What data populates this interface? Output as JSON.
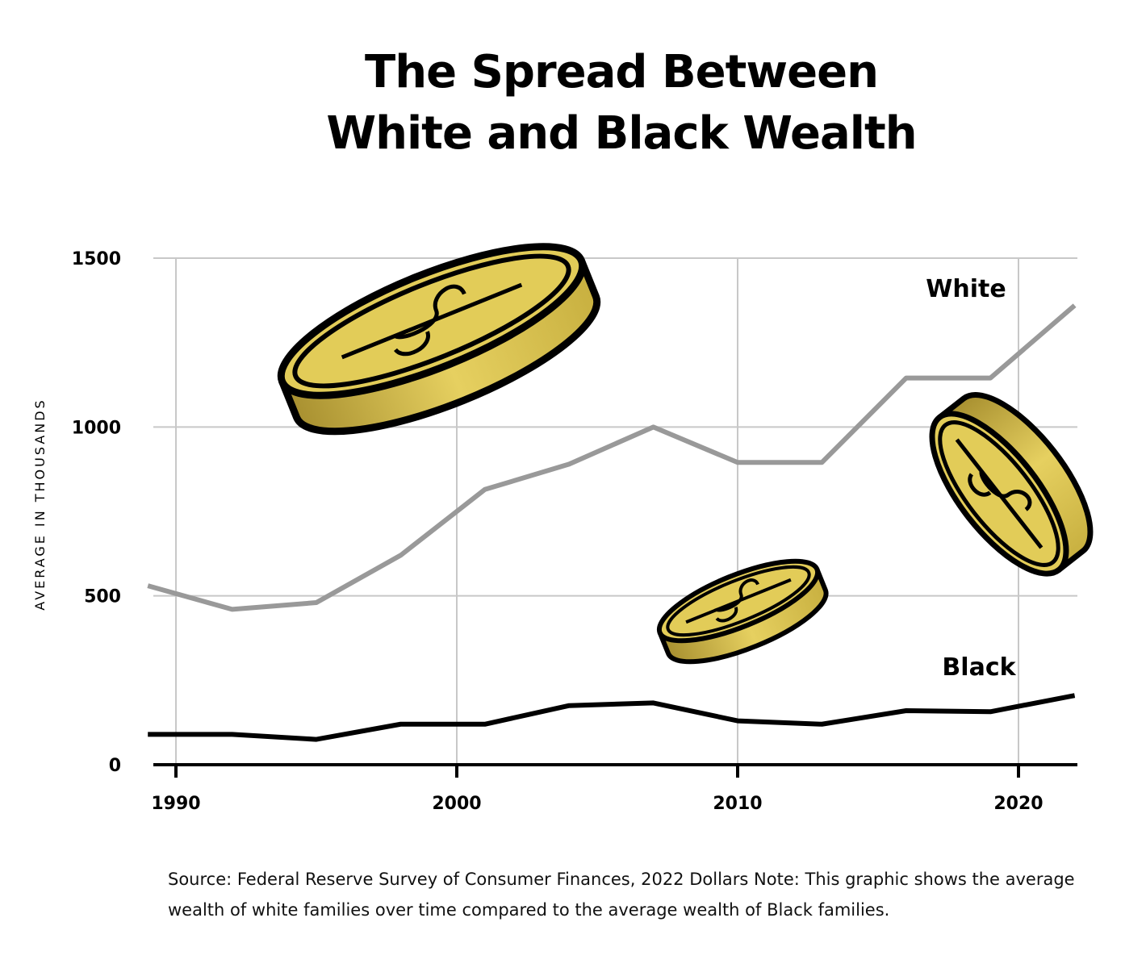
{
  "title_lines": [
    "The Spread Between",
    "White and Black Wealth"
  ],
  "source_note": "Source: Federal Reserve Survey of Consumer Finances, 2022 Dollars Note: This graphic shows the average wealth of white families over time compared to the average wealth of Black families.",
  "colors": {
    "white_series": "#999999",
    "black_series": "#000000",
    "grid": "#c8c8c8",
    "coin_gold": "#e0c850",
    "coin_dark": "#b8a030"
  },
  "decor": [
    "coin-icon",
    "coin-icon",
    "coin-icon"
  ],
  "chart_data": {
    "type": "line",
    "title": "The Spread Between White and Black Wealth",
    "xlabel": "",
    "ylabel": "AVERAGE IN THOUSANDS",
    "xlim": [
      1989,
      2022
    ],
    "ylim": [
      0,
      1500
    ],
    "x_ticks": [
      1990,
      2000,
      2010,
      2020
    ],
    "y_ticks": [
      0,
      500,
      1000,
      1500
    ],
    "grid": true,
    "legend": "inline labels at line ends",
    "series": [
      {
        "name": "White",
        "x": [
          1989,
          1992,
          1995,
          1998,
          2001,
          2004,
          2007,
          2010,
          2013,
          2016,
          2019,
          2022
        ],
        "y": [
          530,
          460,
          480,
          620,
          815,
          890,
          1000,
          895,
          895,
          1145,
          1145,
          1360
        ]
      },
      {
        "name": "Black",
        "x": [
          1989,
          1992,
          1995,
          1998,
          2001,
          2004,
          2007,
          2010,
          2013,
          2016,
          2019,
          2022
        ],
        "y": [
          90,
          90,
          75,
          120,
          120,
          175,
          183,
          130,
          120,
          160,
          157,
          205
        ]
      }
    ]
  }
}
